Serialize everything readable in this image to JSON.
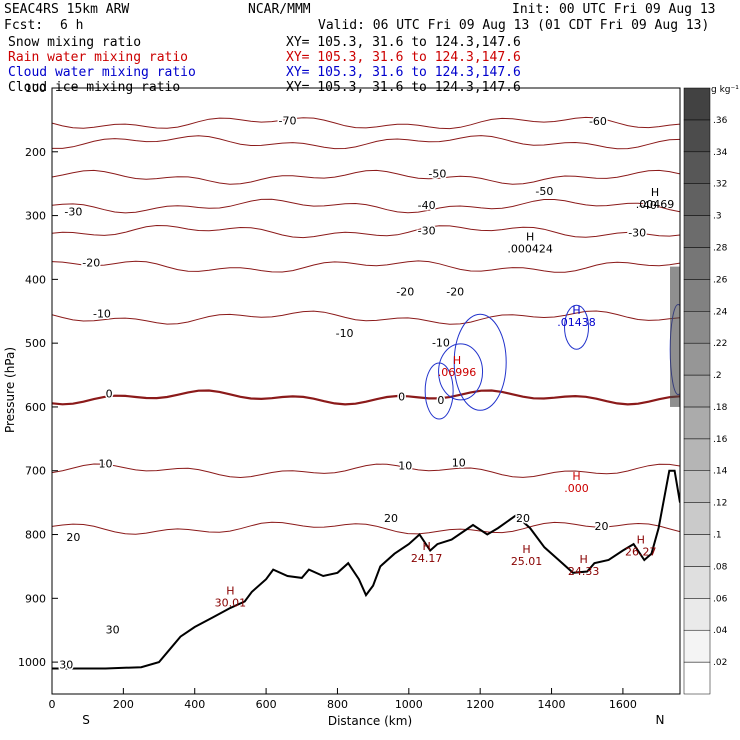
{
  "header": {
    "model": "SEAC4RS 15km ARW",
    "org": "NCAR/MMM",
    "init": "Init: 00 UTC Fri 09 Aug 13",
    "fcst_label": "Fcst:",
    "fcst_value": "6 h",
    "valid": "Valid: 06 UTC Fri 09 Aug 13 (01 CDT Fri 09 Aug 13)",
    "fields": [
      {
        "name": "Snow mixing ratio",
        "xy": "XY= 105.3, 31.6 to 124.3,147.6",
        "color": "#000000"
      },
      {
        "name": "Rain water mixing ratio",
        "xy": "XY= 105.3, 31.6 to 124.3,147.6",
        "color": "#cc0000"
      },
      {
        "name": "Cloud water mixing ratio",
        "xy": "XY= 105.3, 31.6 to 124.3,147.6",
        "color": "#0000cc"
      },
      {
        "name": "Cloud ice mixing ratio",
        "xy": "XY= 105.3, 31.6 to 124.3,147.6",
        "color": "#000000"
      }
    ]
  },
  "chart_data": {
    "type": "contour",
    "xlabel": "Distance (km)",
    "ylabel": "Pressure (hPa)",
    "xlim": [
      0,
      1760
    ],
    "ylim": [
      1050,
      100
    ],
    "x_ticks": [
      0,
      200,
      400,
      600,
      800,
      1000,
      1200,
      1400,
      1600
    ],
    "y_ticks": [
      200,
      300,
      400,
      500,
      600,
      700,
      800,
      900,
      1000
    ],
    "y_tick_top": "100",
    "end_labels": {
      "left": "S",
      "right": "N"
    },
    "colorbar": {
      "units": "g kg⁻¹",
      "ticks": [
        ".02",
        ".04",
        ".06",
        ".08",
        ".1",
        ".12",
        ".14",
        ".16",
        ".18",
        ".2",
        ".22",
        ".24",
        ".26",
        ".28",
        ".3",
        ".32",
        ".34",
        ".36"
      ]
    },
    "temperature_contours": [
      {
        "label": "-70",
        "p": 155
      },
      {
        "label": "-60",
        "p": 185
      },
      {
        "label": "-50",
        "p": 240
      },
      {
        "label": "-40",
        "p": 285
      },
      {
        "label": "-30",
        "p": 325
      },
      {
        "label": "-20",
        "p": 380
      },
      {
        "label": "-10",
        "p": 460
      },
      {
        "label": "0",
        "p": 585
      },
      {
        "label": "10",
        "p": 700
      },
      {
        "label": "20",
        "p": 790
      }
    ],
    "contour_labels": [
      {
        "text": "-70",
        "x": 660,
        "p": 157
      },
      {
        "text": "-60",
        "x": 1530,
        "p": 158
      },
      {
        "text": "-50",
        "x": 1080,
        "p": 240
      },
      {
        "text": "-50",
        "x": 1380,
        "p": 268
      },
      {
        "text": "-40",
        "x": 1050,
        "p": 290
      },
      {
        "text": "-40",
        "x": 1670,
        "p": 290
      },
      {
        "text": "-30",
        "x": 60,
        "p": 300
      },
      {
        "text": "-30",
        "x": 1050,
        "p": 330
      },
      {
        "text": "-30",
        "x": 1640,
        "p": 333
      },
      {
        "text": "-20",
        "x": 110,
        "p": 380
      },
      {
        "text": "-20",
        "x": 990,
        "p": 425
      },
      {
        "text": "-20",
        "x": 1130,
        "p": 425
      },
      {
        "text": "-10",
        "x": 140,
        "p": 460
      },
      {
        "text": "-10",
        "x": 820,
        "p": 490
      },
      {
        "text": "-10",
        "x": 1090,
        "p": 505
      },
      {
        "text": "0",
        "x": 160,
        "p": 585
      },
      {
        "text": "0",
        "x": 980,
        "p": 590
      },
      {
        "text": "0",
        "x": 1090,
        "p": 595
      },
      {
        "text": "10",
        "x": 150,
        "p": 695
      },
      {
        "text": "10",
        "x": 990,
        "p": 698
      },
      {
        "text": "10",
        "x": 1140,
        "p": 693
      },
      {
        "text": "20",
        "x": 60,
        "p": 810
      },
      {
        "text": "20",
        "x": 950,
        "p": 780
      },
      {
        "text": "20",
        "x": 1320,
        "p": 780
      },
      {
        "text": "20",
        "x": 1540,
        "p": 793
      },
      {
        "text": "30",
        "x": 170,
        "p": 955
      },
      {
        "text": "30",
        "x": 40,
        "p": 1010
      }
    ],
    "extrema": [
      {
        "text": "H",
        "value": ".000424",
        "x": 1340,
        "p": 355,
        "color": "#000000"
      },
      {
        "text": "H",
        "value": ".00469",
        "x": 1690,
        "p": 285,
        "color": "#000000"
      },
      {
        "text": "H",
        "value": ".01438",
        "x": 1470,
        "p": 470,
        "color": "#0000cc"
      },
      {
        "text": "H",
        "value": ".06996",
        "x": 1135,
        "p": 548,
        "color": "#cc0000"
      },
      {
        "text": "H",
        "value": ".000",
        "x": 1470,
        "p": 730,
        "color": "#cc0000"
      },
      {
        "text": "H",
        "value": "30.01",
        "x": 500,
        "p": 910,
        "color": "#880000"
      },
      {
        "text": "H",
        "value": "24.17",
        "x": 1050,
        "p": 840,
        "color": "#880000"
      },
      {
        "text": "H",
        "value": "25.01",
        "x": 1330,
        "p": 845,
        "color": "#880000"
      },
      {
        "text": "H",
        "value": "24.33",
        "x": 1490,
        "p": 860,
        "color": "#880000"
      },
      {
        "text": "H",
        "value": "26.27",
        "x": 1650,
        "p": 830,
        "color": "#880000"
      }
    ],
    "terrain": [
      [
        0,
        1010
      ],
      [
        150,
        1010
      ],
      [
        250,
        1008
      ],
      [
        300,
        1000
      ],
      [
        330,
        980
      ],
      [
        360,
        960
      ],
      [
        400,
        945
      ],
      [
        450,
        930
      ],
      [
        500,
        915
      ],
      [
        540,
        905
      ],
      [
        560,
        890
      ],
      [
        600,
        870
      ],
      [
        620,
        855
      ],
      [
        660,
        865
      ],
      [
        700,
        868
      ],
      [
        720,
        855
      ],
      [
        760,
        865
      ],
      [
        800,
        860
      ],
      [
        830,
        845
      ],
      [
        860,
        870
      ],
      [
        880,
        895
      ],
      [
        900,
        880
      ],
      [
        920,
        850
      ],
      [
        960,
        830
      ],
      [
        1000,
        815
      ],
      [
        1030,
        800
      ],
      [
        1060,
        825
      ],
      [
        1080,
        815
      ],
      [
        1120,
        808
      ],
      [
        1180,
        785
      ],
      [
        1220,
        800
      ],
      [
        1250,
        790
      ],
      [
        1300,
        770
      ],
      [
        1340,
        790
      ],
      [
        1380,
        820
      ],
      [
        1420,
        840
      ],
      [
        1460,
        860
      ],
      [
        1500,
        858
      ],
      [
        1520,
        845
      ],
      [
        1560,
        840
      ],
      [
        1600,
        825
      ],
      [
        1630,
        815
      ],
      [
        1660,
        840
      ],
      [
        1680,
        830
      ],
      [
        1700,
        790
      ],
      [
        1730,
        700
      ],
      [
        1745,
        700
      ],
      [
        1760,
        750
      ]
    ]
  }
}
